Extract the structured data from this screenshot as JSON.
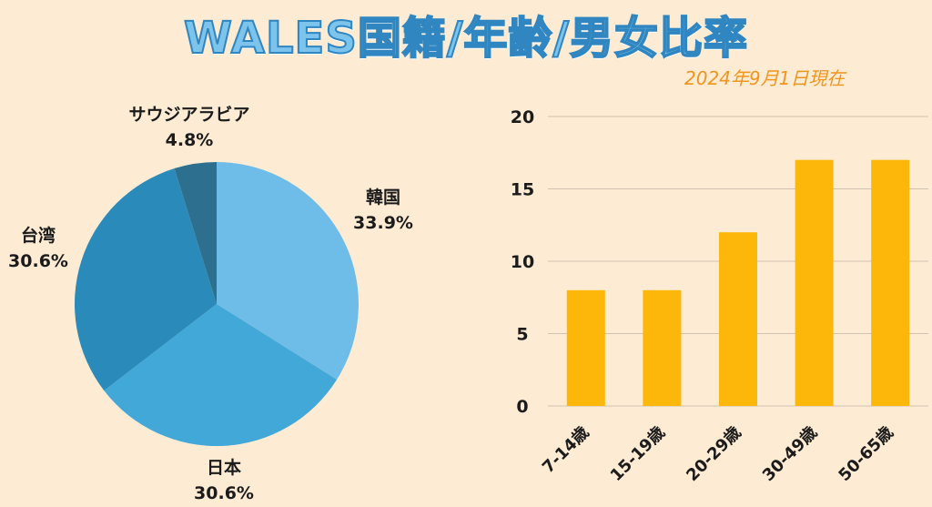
{
  "title": "WALES国籍/年齢/男女比率",
  "date": "2024年9月1日現在",
  "chart_data": [
    {
      "type": "pie",
      "slices": [
        {
          "label": "韓国",
          "percent_label": "33.9%",
          "value": 33.9,
          "color": "#6dbde8"
        },
        {
          "label": "日本",
          "percent_label": "30.6%",
          "value": 30.6,
          "color": "#41a8d8"
        },
        {
          "label": "台湾",
          "percent_label": "30.6%",
          "value": 30.6,
          "color": "#2a8ab9"
        },
        {
          "label": "サウジアラビア",
          "percent_label": "4.8%",
          "value": 4.8,
          "color": "#2c6f8f"
        }
      ]
    },
    {
      "type": "bar",
      "categories": [
        "7-14歳",
        "15-19歳",
        "20-29歳",
        "30-49歳",
        "50-65歳"
      ],
      "values": [
        8,
        8,
        12,
        17,
        17
      ],
      "ylim": [
        0,
        20
      ],
      "yticks": [
        0,
        5,
        10,
        15,
        20
      ],
      "grid": true,
      "bar_color": "#fdb60a"
    }
  ]
}
